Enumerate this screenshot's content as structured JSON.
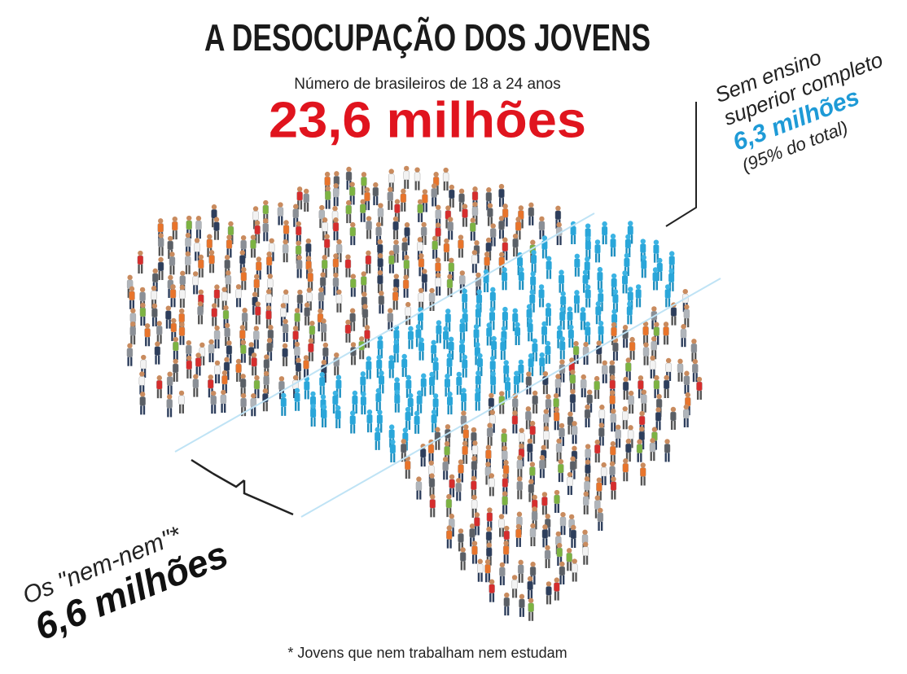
{
  "header": {
    "title": "A DESOCUPAÇÃO DOS JOVENS",
    "subtitle": "Número de brasileiros de 18 a 24 anos",
    "total": "23,6 milhões"
  },
  "annotations": {
    "right": {
      "line1": "Sem ensino",
      "line2": "superior completo",
      "value": "6,3 milhões",
      "note": "(95% do total)"
    },
    "left": {
      "label": "Os \"nem-nem\"*",
      "value": "6,6 milhões"
    }
  },
  "footnote": "* Jovens que nem trabalham nem estudam"
}
